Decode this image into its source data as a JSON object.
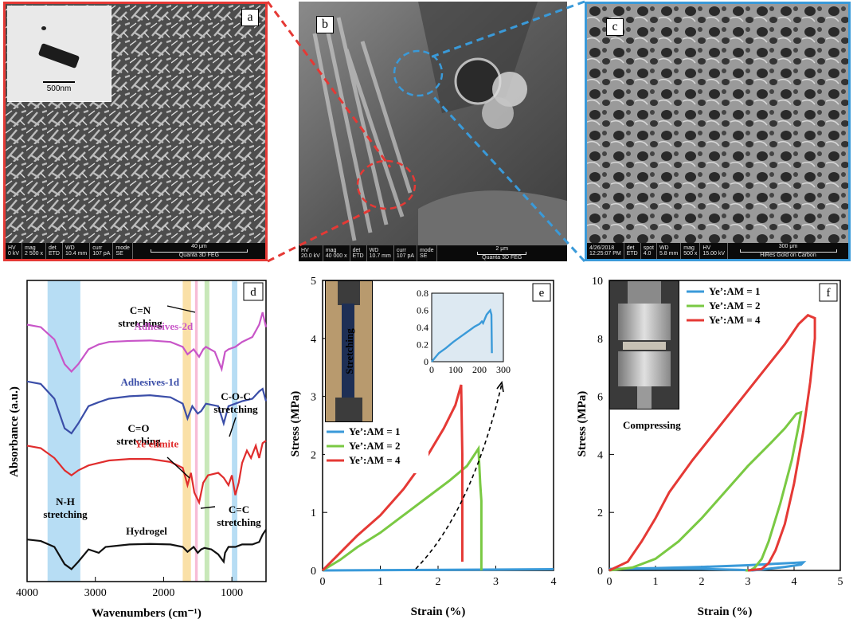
{
  "panels": {
    "a": {
      "letter": "a",
      "border_color": "#e53935",
      "tem_scale": "500nm",
      "sem_bar": {
        "hv_label": "HV",
        "hv": "0 kV",
        "mag_label": "mag",
        "mag": "2 500 x",
        "det_label": "det",
        "det": "ETD",
        "wd_label": "WD",
        "wd": "10.4 mm",
        "curr_label": "curr",
        "curr": "107 pA",
        "mode_label": "mode",
        "mode": "SE",
        "scale": "40 μm",
        "instrument": "Quanta 3D FEG"
      }
    },
    "b": {
      "letter": "b",
      "sem_bar": {
        "hv_label": "HV",
        "hv": "20.0 kV",
        "mag_label": "mag",
        "mag": "40 000 x",
        "det_label": "det",
        "det": "ETD",
        "wd_label": "WD",
        "wd": "10.7 mm",
        "curr_label": "curr",
        "curr": "107 pA",
        "mode_label": "mode",
        "mode": "SE",
        "scale": "2 μm",
        "instrument": "Quanta 3D FEG"
      }
    },
    "c": {
      "letter": "c",
      "border_color": "#3a9ad9",
      "sem_bar": {
        "date": "4/26/2018",
        "time": "12:25:07 PM",
        "det_label": "det",
        "det": "ETD",
        "spot_label": "spot",
        "spot": "4.0",
        "wd_label": "WD",
        "wd": "5.8 mm",
        "mag_label": "mag",
        "mag": "500 x",
        "hv_label": "HV",
        "hv": "15.00 kV",
        "scale": "300 μm",
        "instrument": "HiRes Gold on Carbon"
      }
    },
    "d": {
      "letter": "d"
    },
    "e": {
      "letter": "e",
      "photo_label": "Stretching"
    },
    "f": {
      "letter": "f",
      "photo_label": "Compressing"
    }
  },
  "chart_data": [
    {
      "panel": "d",
      "type": "line",
      "xlabel": "Wavenumbers (cm⁻¹)",
      "ylabel": "Absorbance (a.u.)",
      "xlim": [
        4000,
        500
      ],
      "xticks": [
        4000,
        3000,
        2000,
        1000
      ],
      "x_reversed": true,
      "highlight_bands": [
        {
          "x": [
            3700,
            3220
          ],
          "color": "#9fd2f0"
        },
        {
          "x": [
            1720,
            1600
          ],
          "color": "#f8d58a"
        },
        {
          "x": [
            1540,
            1500
          ],
          "color": "#f4a6c8"
        },
        {
          "x": [
            1400,
            1330
          ],
          "color": "#b5e0a2"
        },
        {
          "x": [
            1000,
            920
          ],
          "color": "#9fd2f0"
        }
      ],
      "annotations": {
        "nh": "N-H\nstretching",
        "cn": "C=N\nstretching",
        "co": "C=O\nstretching",
        "coc": "C-O-C\nstretching",
        "cc": "C=C\nstretching"
      },
      "series": [
        {
          "name": "Adhesives-2d",
          "color": "#c855c8",
          "offset": 4.2,
          "x": [
            4000,
            3800,
            3600,
            3450,
            3350,
            3250,
            3100,
            2950,
            2800,
            2500,
            2200,
            1900,
            1720,
            1650,
            1560,
            1480,
            1420,
            1380,
            1250,
            1150,
            1100,
            1050,
            950,
            850,
            700,
            600,
            550,
            500
          ],
          "y": [
            0.55,
            0.5,
            0.25,
            -0.25,
            -0.4,
            -0.25,
            0.05,
            0.15,
            0.2,
            0.22,
            0.23,
            0.2,
            0.1,
            -0.05,
            0.05,
            -0.1,
            0.05,
            0.1,
            0,
            -0.35,
            0,
            0.05,
            0.1,
            0.2,
            0.3,
            0.55,
            0.8,
            0.5
          ]
        },
        {
          "name": "Adhesives-1d",
          "color": "#3b4ea8",
          "offset": 3.1,
          "x": [
            4000,
            3800,
            3600,
            3450,
            3350,
            3250,
            3100,
            2950,
            2800,
            2500,
            2200,
            1900,
            1720,
            1650,
            1580,
            1500,
            1450,
            1380,
            1200,
            1120,
            1050,
            950,
            850,
            700,
            600,
            550,
            500
          ],
          "y": [
            0.5,
            0.45,
            0.15,
            -0.45,
            -0.55,
            -0.35,
            0,
            0.08,
            0.15,
            0.2,
            0.22,
            0.18,
            0.05,
            -0.25,
            0,
            -0.15,
            -0.1,
            0.05,
            0,
            -0.35,
            0,
            0.05,
            0.1,
            0.15,
            0.3,
            0.35,
            0.1
          ]
        },
        {
          "name": "Ye'elimite",
          "color": "#e02d2d",
          "offset": 1.85,
          "x": [
            4000,
            3800,
            3600,
            3450,
            3350,
            3250,
            3100,
            2950,
            2800,
            2500,
            2200,
            1900,
            1720,
            1650,
            1600,
            1550,
            1480,
            1420,
            1350,
            1200,
            1120,
            1050,
            1000,
            950,
            900,
            850,
            780,
            720,
            650,
            600,
            550,
            500
          ],
          "y": [
            0.45,
            0.4,
            0.2,
            -0.05,
            -0.15,
            -0.05,
            0.05,
            0.1,
            0.15,
            0.18,
            0.18,
            0.12,
            0,
            -0.35,
            -0.1,
            -0.5,
            -0.7,
            -0.3,
            -0.15,
            -0.1,
            -0.2,
            -0.35,
            -0.15,
            -0.55,
            -0.3,
            0.1,
            0.35,
            0.2,
            0.45,
            0.2,
            0.5,
            0.55
          ]
        },
        {
          "name": "Hydrogel",
          "color": "#111111",
          "offset": 0.25,
          "x": [
            4000,
            3800,
            3600,
            3450,
            3350,
            3250,
            3100,
            2950,
            2850,
            2500,
            2200,
            1900,
            1720,
            1650,
            1560,
            1500,
            1450,
            1400,
            1300,
            1200,
            1120,
            1100,
            1050,
            950,
            850,
            700,
            600,
            550,
            500
          ],
          "y": [
            0.15,
            0.12,
            0,
            -0.35,
            -0.45,
            -0.3,
            -0.05,
            -0.12,
            0,
            0.05,
            0.06,
            0.05,
            0,
            -0.1,
            0,
            -0.12,
            -0.05,
            -0.02,
            -0.05,
            -0.15,
            -0.3,
            -0.12,
            0,
            0,
            0.05,
            0.05,
            0.1,
            0.25,
            0.35
          ]
        }
      ]
    },
    {
      "panel": "e",
      "type": "line",
      "xlabel": "Strain (%)",
      "ylabel": "Stress (MPa)",
      "xlim": [
        0,
        4
      ],
      "ylim": [
        0,
        5
      ],
      "xticks": [
        0,
        1,
        2,
        3,
        4
      ],
      "yticks": [
        0,
        1,
        2,
        3,
        4,
        5
      ],
      "legend": "lower-left",
      "series": [
        {
          "name": "Ye’:AM = 1",
          "color": "#3a9ad9",
          "x": [
            0,
            4
          ],
          "y": [
            0,
            0.02
          ]
        },
        {
          "name": "Ye’:AM = 2",
          "color": "#7ac943",
          "x": [
            0,
            0.3,
            0.6,
            1.0,
            1.4,
            1.8,
            2.2,
            2.5,
            2.7,
            2.73,
            2.75,
            2.75
          ],
          "y": [
            0,
            0.18,
            0.4,
            0.65,
            0.95,
            1.25,
            1.55,
            1.8,
            2.1,
            1.5,
            1.2,
            0
          ]
        },
        {
          "name": "Ye’:AM = 4",
          "color": "#e53935",
          "x": [
            0,
            0.3,
            0.6,
            1.0,
            1.4,
            1.8,
            2.1,
            2.3,
            2.4,
            2.42,
            2.42
          ],
          "y": [
            0,
            0.3,
            0.6,
            0.95,
            1.4,
            1.95,
            2.45,
            2.85,
            3.2,
            2.0,
            0.15
          ]
        }
      ],
      "inset": {
        "xlim": [
          0,
          300
        ],
        "ylim": [
          0,
          0.8
        ],
        "xticks": [
          0,
          100,
          200,
          300
        ],
        "yticks": [
          0,
          0.2,
          0.4,
          0.6,
          0.8
        ],
        "yticklabels": [
          "0",
          "0.2",
          "0.4",
          "0.6",
          "0.8"
        ],
        "series": [
          {
            "color": "#3a9ad9",
            "x": [
              0,
              30,
              60,
              90,
              120,
              150,
              180,
              200,
              210,
              215,
              230,
              245,
              250,
              252
            ],
            "y": [
              0,
              0.1,
              0.16,
              0.23,
              0.29,
              0.35,
              0.41,
              0.44,
              0.47,
              0.45,
              0.55,
              0.6,
              0.55,
              0.1
            ]
          }
        ]
      }
    },
    {
      "panel": "f",
      "type": "line",
      "xlabel": "Strain (%)",
      "ylabel": "Stress (MPa)",
      "xlim": [
        0,
        5
      ],
      "ylim": [
        0,
        10
      ],
      "xticks": [
        0,
        1,
        2,
        3,
        4,
        5
      ],
      "yticks": [
        0,
        2,
        4,
        6,
        8,
        10
      ],
      "legend": "top-right",
      "series": [
        {
          "name": "Ye’:AM = 1",
          "color": "#3a9ad9",
          "x": [
            0,
            1,
            2,
            3,
            3.6,
            4.0,
            4.2,
            4.15,
            3.8,
            3.3,
            3.1,
            2.8,
            2,
            1,
            0
          ],
          "y": [
            0.05,
            0.08,
            0.12,
            0.18,
            0.23,
            0.26,
            0.28,
            0.2,
            0.12,
            0.03,
            0,
            0.02,
            0.05,
            0.06,
            0.05
          ]
        },
        {
          "name": "Ye’:AM = 2",
          "color": "#7ac943",
          "x": [
            0,
            0.5,
            1,
            1.5,
            2,
            2.5,
            3,
            3.5,
            3.8,
            4.05,
            4.15,
            4.1,
            3.95,
            3.7,
            3.45,
            3.3,
            3.15,
            3.05,
            2.95
          ],
          "y": [
            0,
            0.1,
            0.4,
            1.0,
            1.8,
            2.7,
            3.6,
            4.4,
            4.9,
            5.4,
            5.45,
            5.0,
            3.8,
            2.3,
            1.0,
            0.4,
            0.1,
            0,
            0
          ]
        },
        {
          "name": "Ye’:AM = 4",
          "color": "#e53935",
          "x": [
            0,
            0.4,
            0.7,
            1.0,
            1.3,
            1.8,
            2.3,
            2.8,
            3.3,
            3.8,
            4.1,
            4.3,
            4.45,
            4.45,
            4.35,
            4.2,
            4.0,
            3.8,
            3.6,
            3.45,
            3.3,
            3.0
          ],
          "y": [
            0,
            0.3,
            1.0,
            1.8,
            2.7,
            3.8,
            4.8,
            5.8,
            6.8,
            7.8,
            8.5,
            8.8,
            8.7,
            8.0,
            6.5,
            4.8,
            3.0,
            1.6,
            0.7,
            0.25,
            0.05,
            0
          ]
        }
      ]
    }
  ]
}
